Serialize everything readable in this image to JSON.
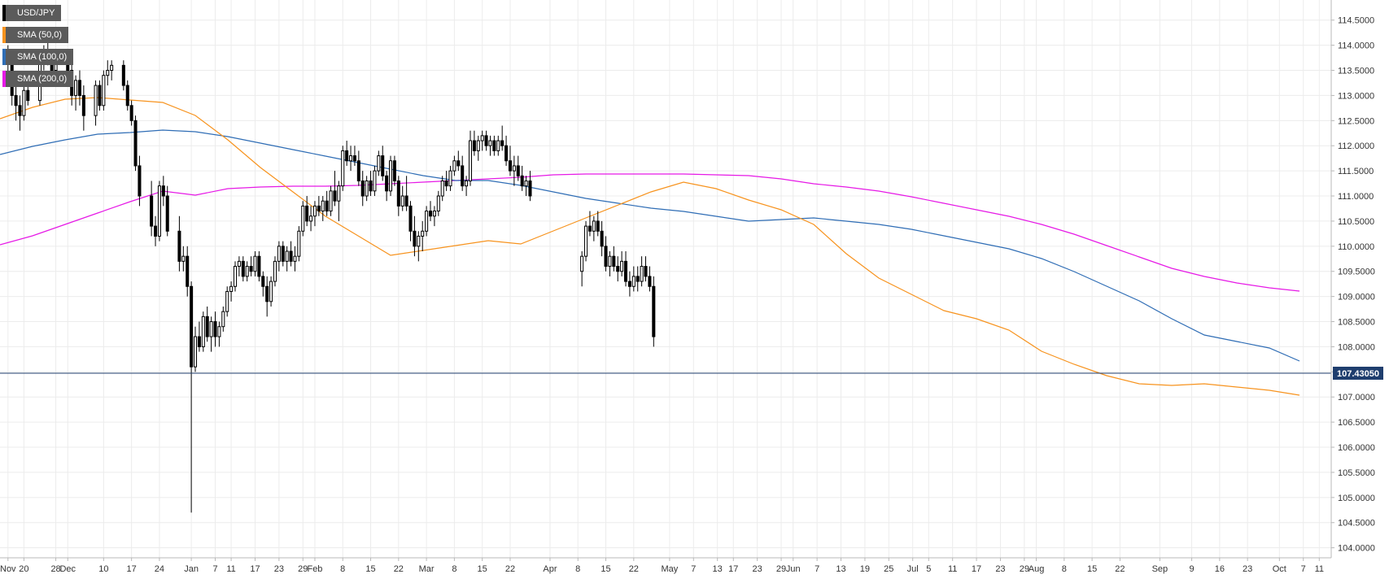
{
  "legend": {
    "items": [
      {
        "label": "USD/JPY",
        "color": "#000000"
      },
      {
        "label": "SMA (50,0)",
        "color": "#f7931e"
      },
      {
        "label": "SMA (100,0)",
        "color": "#2f6db5"
      },
      {
        "label": "SMA (200,0)",
        "color": "#e619e6"
      }
    ]
  },
  "last_price_label": "107.43050",
  "chart_data": {
    "type": "candlestick",
    "title": "",
    "xlabel": "",
    "ylabel": "",
    "ylim": [
      103.8,
      114.9
    ],
    "grid": true,
    "legend_position": "top-left",
    "y_ticks": [
      "114.5000",
      "114.0000",
      "113.5000",
      "113.0000",
      "112.5000",
      "112.0000",
      "111.5000",
      "111.0000",
      "110.5000",
      "110.0000",
      "109.5000",
      "109.0000",
      "108.5000",
      "108.0000",
      "107.5000",
      "107.0000",
      "106.5000",
      "106.0000",
      "105.5000",
      "105.0000",
      "104.5000",
      "104.0000"
    ],
    "x_ticks": [
      {
        "label": "Nov",
        "day": 0
      },
      {
        "label": "20",
        "day": 4
      },
      {
        "label": "28",
        "day": 12
      },
      {
        "label": "Dec",
        "day": 15
      },
      {
        "label": "10",
        "day": 24
      },
      {
        "label": "17",
        "day": 31
      },
      {
        "label": "24",
        "day": 38
      },
      {
        "label": "Jan",
        "day": 46
      },
      {
        "label": "7",
        "day": 52
      },
      {
        "label": "11",
        "day": 56
      },
      {
        "label": "17",
        "day": 62
      },
      {
        "label": "23",
        "day": 68
      },
      {
        "label": "29",
        "day": 74
      },
      {
        "label": "Feb",
        "day": 77
      },
      {
        "label": "8",
        "day": 84
      },
      {
        "label": "15",
        "day": 91
      },
      {
        "label": "22",
        "day": 98
      },
      {
        "label": "Mar",
        "day": 105
      },
      {
        "label": "8",
        "day": 112
      },
      {
        "label": "15",
        "day": 119
      },
      {
        "label": "22",
        "day": 126
      },
      {
        "label": "Apr",
        "day": 136
      },
      {
        "label": "8",
        "day": 143
      },
      {
        "label": "15",
        "day": 150
      },
      {
        "label": "22",
        "day": 157
      },
      {
        "label": "May",
        "day": 166
      },
      {
        "label": "7",
        "day": 172
      },
      {
        "label": "13",
        "day": 178
      },
      {
        "label": "17",
        "day": 182
      },
      {
        "label": "23",
        "day": 188
      },
      {
        "label": "29",
        "day": 194
      },
      {
        "label": "Jun",
        "day": 197
      },
      {
        "label": "7",
        "day": 203
      },
      {
        "label": "13",
        "day": 209
      },
      {
        "label": "19",
        "day": 215
      },
      {
        "label": "25",
        "day": 221
      },
      {
        "label": "Jul",
        "day": 227
      },
      {
        "label": "5",
        "day": 231
      },
      {
        "label": "11",
        "day": 237
      },
      {
        "label": "17",
        "day": 243
      },
      {
        "label": "23",
        "day": 249
      },
      {
        "label": "29",
        "day": 255
      },
      {
        "label": "Aug",
        "day": 258
      },
      {
        "label": "8",
        "day": 265
      },
      {
        "label": "15",
        "day": 272
      },
      {
        "label": "22",
        "day": 279
      },
      {
        "label": "Sep",
        "day": 289
      },
      {
        "label": "9",
        "day": 297
      },
      {
        "label": "16",
        "day": 304
      },
      {
        "label": "23",
        "day": 311
      },
      {
        "label": "Oct",
        "day": 319
      },
      {
        "label": "7",
        "day": 325
      },
      {
        "label": "11",
        "day": 329
      }
    ],
    "x_range_days": [
      -2,
      332
    ],
    "last_price": 107.43,
    "candles": [
      {
        "d": 0,
        "o": 113.85,
        "h": 114.0,
        "l": 113.3,
        "c": 113.7
      },
      {
        "d": 1,
        "o": 113.7,
        "h": 113.9,
        "l": 112.8,
        "c": 113.0
      },
      {
        "d": 2,
        "o": 113.0,
        "h": 113.3,
        "l": 112.5,
        "c": 112.8
      },
      {
        "d": 3,
        "o": 112.8,
        "h": 113.0,
        "l": 112.3,
        "c": 112.6
      },
      {
        "d": 4,
        "o": 112.6,
        "h": 113.2,
        "l": 112.5,
        "c": 113.1
      },
      {
        "d": 5,
        "o": 113.1,
        "h": 113.3,
        "l": 112.8,
        "c": 112.9
      },
      {
        "d": 8,
        "o": 112.9,
        "h": 113.8,
        "l": 112.8,
        "c": 113.7
      },
      {
        "d": 9,
        "o": 113.7,
        "h": 114.0,
        "l": 113.5,
        "c": 113.9
      },
      {
        "d": 10,
        "o": 113.9,
        "h": 114.1,
        "l": 113.6,
        "c": 113.7
      },
      {
        "d": 11,
        "o": 113.7,
        "h": 113.9,
        "l": 113.4,
        "c": 113.5
      },
      {
        "d": 12,
        "o": 113.5,
        "h": 113.9,
        "l": 113.3,
        "c": 113.8
      },
      {
        "d": 15,
        "o": 113.8,
        "h": 113.9,
        "l": 113.4,
        "c": 113.5
      },
      {
        "d": 16,
        "o": 113.5,
        "h": 113.7,
        "l": 112.8,
        "c": 113.0
      },
      {
        "d": 17,
        "o": 113.0,
        "h": 113.4,
        "l": 112.7,
        "c": 113.3
      },
      {
        "d": 18,
        "o": 113.3,
        "h": 113.5,
        "l": 112.8,
        "c": 113.0
      },
      {
        "d": 19,
        "o": 113.0,
        "h": 113.2,
        "l": 112.3,
        "c": 112.6
      },
      {
        "d": 22,
        "o": 112.6,
        "h": 113.3,
        "l": 112.4,
        "c": 113.2
      },
      {
        "d": 23,
        "o": 113.2,
        "h": 113.3,
        "l": 112.7,
        "c": 112.8
      },
      {
        "d": 24,
        "o": 112.8,
        "h": 113.5,
        "l": 112.7,
        "c": 113.4
      },
      {
        "d": 25,
        "o": 113.4,
        "h": 113.7,
        "l": 113.2,
        "c": 113.5
      },
      {
        "d": 26,
        "o": 113.5,
        "h": 113.7,
        "l": 113.3,
        "c": 113.6
      },
      {
        "d": 29,
        "o": 113.6,
        "h": 113.7,
        "l": 113.1,
        "c": 113.2
      },
      {
        "d": 30,
        "o": 113.2,
        "h": 113.3,
        "l": 112.7,
        "c": 112.8
      },
      {
        "d": 31,
        "o": 112.8,
        "h": 112.9,
        "l": 112.4,
        "c": 112.5
      },
      {
        "d": 32,
        "o": 112.5,
        "h": 112.6,
        "l": 111.5,
        "c": 111.6
      },
      {
        "d": 33,
        "o": 111.6,
        "h": 111.8,
        "l": 110.8,
        "c": 111.0
      },
      {
        "d": 36,
        "o": 111.0,
        "h": 111.3,
        "l": 110.2,
        "c": 110.4
      },
      {
        "d": 37,
        "o": 110.4,
        "h": 110.6,
        "l": 110.0,
        "c": 110.2
      },
      {
        "d": 38,
        "o": 110.2,
        "h": 111.3,
        "l": 110.1,
        "c": 111.2
      },
      {
        "d": 39,
        "o": 111.2,
        "h": 111.4,
        "l": 110.8,
        "c": 111.0
      },
      {
        "d": 40,
        "o": 111.0,
        "h": 111.2,
        "l": 110.2,
        "c": 110.3
      },
      {
        "d": 43,
        "o": 110.3,
        "h": 110.6,
        "l": 109.5,
        "c": 109.7
      },
      {
        "d": 44,
        "o": 109.7,
        "h": 110.0,
        "l": 109.5,
        "c": 109.8
      },
      {
        "d": 45,
        "o": 109.8,
        "h": 110.0,
        "l": 109.0,
        "c": 109.2
      },
      {
        "d": 46,
        "o": 109.2,
        "h": 109.3,
        "l": 104.7,
        "c": 107.6
      },
      {
        "d": 47,
        "o": 107.6,
        "h": 108.4,
        "l": 107.5,
        "c": 108.2
      },
      {
        "d": 48,
        "o": 108.2,
        "h": 108.5,
        "l": 107.9,
        "c": 108.0
      },
      {
        "d": 49,
        "o": 108.0,
        "h": 108.7,
        "l": 107.9,
        "c": 108.6
      },
      {
        "d": 50,
        "o": 108.6,
        "h": 108.8,
        "l": 108.1,
        "c": 108.2
      },
      {
        "d": 51,
        "o": 108.2,
        "h": 108.6,
        "l": 107.9,
        "c": 108.5
      },
      {
        "d": 52,
        "o": 108.5,
        "h": 108.7,
        "l": 108.0,
        "c": 108.2
      },
      {
        "d": 53,
        "o": 108.2,
        "h": 108.5,
        "l": 108.0,
        "c": 108.4
      },
      {
        "d": 54,
        "o": 108.4,
        "h": 108.8,
        "l": 108.3,
        "c": 108.7
      },
      {
        "d": 55,
        "o": 108.7,
        "h": 109.2,
        "l": 108.6,
        "c": 109.1
      },
      {
        "d": 56,
        "o": 109.1,
        "h": 109.3,
        "l": 108.9,
        "c": 109.2
      },
      {
        "d": 57,
        "o": 109.2,
        "h": 109.7,
        "l": 109.1,
        "c": 109.6
      },
      {
        "d": 58,
        "o": 109.6,
        "h": 109.8,
        "l": 109.4,
        "c": 109.7
      },
      {
        "d": 59,
        "o": 109.7,
        "h": 109.8,
        "l": 109.3,
        "c": 109.4
      },
      {
        "d": 60,
        "o": 109.4,
        "h": 109.7,
        "l": 109.3,
        "c": 109.6
      },
      {
        "d": 61,
        "o": 109.6,
        "h": 109.8,
        "l": 109.4,
        "c": 109.5
      },
      {
        "d": 62,
        "o": 109.5,
        "h": 109.9,
        "l": 109.4,
        "c": 109.8
      },
      {
        "d": 63,
        "o": 109.8,
        "h": 109.9,
        "l": 109.3,
        "c": 109.4
      },
      {
        "d": 64,
        "o": 109.4,
        "h": 109.5,
        "l": 109.0,
        "c": 109.2
      },
      {
        "d": 65,
        "o": 109.2,
        "h": 109.4,
        "l": 108.6,
        "c": 108.9
      },
      {
        "d": 66,
        "o": 108.9,
        "h": 109.4,
        "l": 108.8,
        "c": 109.3
      },
      {
        "d": 67,
        "o": 109.3,
        "h": 109.8,
        "l": 109.2,
        "c": 109.7
      },
      {
        "d": 68,
        "o": 109.7,
        "h": 110.1,
        "l": 109.5,
        "c": 110.0
      },
      {
        "d": 69,
        "o": 110.0,
        "h": 110.1,
        "l": 109.6,
        "c": 109.7
      },
      {
        "d": 70,
        "o": 109.7,
        "h": 110.0,
        "l": 109.5,
        "c": 109.9
      },
      {
        "d": 71,
        "o": 109.9,
        "h": 110.1,
        "l": 109.6,
        "c": 109.7
      },
      {
        "d": 72,
        "o": 109.7,
        "h": 110.0,
        "l": 109.5,
        "c": 109.8
      },
      {
        "d": 73,
        "o": 109.8,
        "h": 110.4,
        "l": 109.7,
        "c": 110.3
      },
      {
        "d": 74,
        "o": 110.3,
        "h": 110.9,
        "l": 110.2,
        "c": 110.8
      },
      {
        "d": 75,
        "o": 110.8,
        "h": 111.0,
        "l": 110.4,
        "c": 110.5
      },
      {
        "d": 76,
        "o": 110.5,
        "h": 110.8,
        "l": 110.3,
        "c": 110.6
      },
      {
        "d": 77,
        "o": 110.6,
        "h": 110.9,
        "l": 110.4,
        "c": 110.8
      },
      {
        "d": 78,
        "o": 110.8,
        "h": 111.0,
        "l": 110.6,
        "c": 110.7
      },
      {
        "d": 79,
        "o": 110.7,
        "h": 111.0,
        "l": 110.5,
        "c": 110.9
      },
      {
        "d": 80,
        "o": 110.9,
        "h": 111.1,
        "l": 110.6,
        "c": 110.7
      },
      {
        "d": 81,
        "o": 110.7,
        "h": 111.2,
        "l": 110.6,
        "c": 111.1
      },
      {
        "d": 82,
        "o": 111.1,
        "h": 111.5,
        "l": 110.8,
        "c": 110.9
      },
      {
        "d": 83,
        "o": 110.9,
        "h": 111.3,
        "l": 110.5,
        "c": 111.2
      },
      {
        "d": 84,
        "o": 111.2,
        "h": 112.0,
        "l": 111.1,
        "c": 111.9
      },
      {
        "d": 85,
        "o": 111.9,
        "h": 112.1,
        "l": 111.6,
        "c": 111.7
      },
      {
        "d": 86,
        "o": 111.7,
        "h": 112.0,
        "l": 111.5,
        "c": 111.8
      },
      {
        "d": 87,
        "o": 111.8,
        "h": 112.0,
        "l": 111.6,
        "c": 111.7
      },
      {
        "d": 88,
        "o": 111.7,
        "h": 111.9,
        "l": 111.2,
        "c": 111.3
      },
      {
        "d": 89,
        "o": 111.3,
        "h": 111.5,
        "l": 110.8,
        "c": 111.0
      },
      {
        "d": 90,
        "o": 111.0,
        "h": 111.4,
        "l": 110.9,
        "c": 111.3
      },
      {
        "d": 91,
        "o": 111.3,
        "h": 111.5,
        "l": 111.0,
        "c": 111.1
      },
      {
        "d": 92,
        "o": 111.1,
        "h": 111.6,
        "l": 111.0,
        "c": 111.5
      },
      {
        "d": 93,
        "o": 111.5,
        "h": 111.9,
        "l": 111.4,
        "c": 111.8
      },
      {
        "d": 94,
        "o": 111.8,
        "h": 112.0,
        "l": 111.3,
        "c": 111.4
      },
      {
        "d": 95,
        "o": 111.4,
        "h": 111.5,
        "l": 110.9,
        "c": 111.1
      },
      {
        "d": 96,
        "o": 111.1,
        "h": 111.8,
        "l": 111.0,
        "c": 111.7
      },
      {
        "d": 97,
        "o": 111.7,
        "h": 111.8,
        "l": 111.2,
        "c": 111.3
      },
      {
        "d": 98,
        "o": 111.3,
        "h": 111.4,
        "l": 110.6,
        "c": 110.8
      },
      {
        "d": 99,
        "o": 110.8,
        "h": 111.2,
        "l": 110.7,
        "c": 111.0
      },
      {
        "d": 100,
        "o": 111.0,
        "h": 111.4,
        "l": 110.7,
        "c": 110.8
      },
      {
        "d": 101,
        "o": 110.8,
        "h": 110.9,
        "l": 110.1,
        "c": 110.3
      },
      {
        "d": 102,
        "o": 110.3,
        "h": 110.6,
        "l": 109.8,
        "c": 110.0
      },
      {
        "d": 103,
        "o": 110.0,
        "h": 110.3,
        "l": 109.7,
        "c": 110.2
      },
      {
        "d": 104,
        "o": 110.2,
        "h": 110.5,
        "l": 109.9,
        "c": 110.3
      },
      {
        "d": 105,
        "o": 110.3,
        "h": 110.8,
        "l": 110.2,
        "c": 110.7
      },
      {
        "d": 106,
        "o": 110.7,
        "h": 110.9,
        "l": 110.5,
        "c": 110.6
      },
      {
        "d": 107,
        "o": 110.6,
        "h": 110.8,
        "l": 110.4,
        "c": 110.7
      },
      {
        "d": 108,
        "o": 110.7,
        "h": 111.1,
        "l": 110.6,
        "c": 111.0
      },
      {
        "d": 109,
        "o": 111.0,
        "h": 111.4,
        "l": 110.9,
        "c": 111.3
      },
      {
        "d": 110,
        "o": 111.3,
        "h": 111.5,
        "l": 111.1,
        "c": 111.2
      },
      {
        "d": 111,
        "o": 111.2,
        "h": 111.6,
        "l": 111.1,
        "c": 111.5
      },
      {
        "d": 112,
        "o": 111.5,
        "h": 111.8,
        "l": 111.4,
        "c": 111.7
      },
      {
        "d": 113,
        "o": 111.7,
        "h": 111.9,
        "l": 111.5,
        "c": 111.6
      },
      {
        "d": 114,
        "o": 111.6,
        "h": 111.8,
        "l": 111.1,
        "c": 111.2
      },
      {
        "d": 115,
        "o": 111.2,
        "h": 111.4,
        "l": 111.0,
        "c": 111.3
      },
      {
        "d": 116,
        "o": 111.3,
        "h": 112.3,
        "l": 111.2,
        "c": 112.1
      },
      {
        "d": 117,
        "o": 112.1,
        "h": 112.3,
        "l": 111.8,
        "c": 111.9
      },
      {
        "d": 118,
        "o": 111.9,
        "h": 112.2,
        "l": 111.7,
        "c": 112.1
      },
      {
        "d": 119,
        "o": 112.1,
        "h": 112.3,
        "l": 111.9,
        "c": 112.2
      },
      {
        "d": 120,
        "o": 112.2,
        "h": 112.3,
        "l": 111.9,
        "c": 112.0
      },
      {
        "d": 121,
        "o": 112.0,
        "h": 112.2,
        "l": 111.8,
        "c": 112.1
      },
      {
        "d": 122,
        "o": 112.1,
        "h": 112.2,
        "l": 111.8,
        "c": 111.9
      },
      {
        "d": 123,
        "o": 111.9,
        "h": 112.2,
        "l": 111.8,
        "c": 112.1
      },
      {
        "d": 124,
        "o": 112.1,
        "h": 112.4,
        "l": 111.9,
        "c": 112.0
      },
      {
        "d": 125,
        "o": 112.0,
        "h": 112.2,
        "l": 111.6,
        "c": 111.7
      },
      {
        "d": 126,
        "o": 111.7,
        "h": 112.0,
        "l": 111.4,
        "c": 111.5
      },
      {
        "d": 127,
        "o": 111.5,
        "h": 111.8,
        "l": 111.2,
        "c": 111.6
      },
      {
        "d": 128,
        "o": 111.6,
        "h": 111.8,
        "l": 111.3,
        "c": 111.4
      },
      {
        "d": 129,
        "o": 111.4,
        "h": 111.6,
        "l": 111.1,
        "c": 111.2
      },
      {
        "d": 130,
        "o": 111.2,
        "h": 111.4,
        "l": 111.0,
        "c": 111.3
      },
      {
        "d": 131,
        "o": 111.3,
        "h": 111.5,
        "l": 110.9,
        "c": 111.0
      },
      {
        "d": 144,
        "o": 109.5,
        "h": 109.9,
        "l": 109.2,
        "c": 109.8
      },
      {
        "d": 145,
        "o": 109.8,
        "h": 110.5,
        "l": 109.7,
        "c": 110.4
      },
      {
        "d": 146,
        "o": 110.4,
        "h": 110.7,
        "l": 110.2,
        "c": 110.3
      },
      {
        "d": 147,
        "o": 110.3,
        "h": 110.6,
        "l": 110.1,
        "c": 110.5
      },
      {
        "d": 148,
        "o": 110.5,
        "h": 110.7,
        "l": 110.2,
        "c": 110.3
      },
      {
        "d": 149,
        "o": 110.3,
        "h": 110.5,
        "l": 109.8,
        "c": 110.0
      },
      {
        "d": 150,
        "o": 110.0,
        "h": 110.2,
        "l": 109.5,
        "c": 109.6
      },
      {
        "d": 151,
        "o": 109.6,
        "h": 109.9,
        "l": 109.4,
        "c": 109.8
      },
      {
        "d": 152,
        "o": 109.8,
        "h": 110.0,
        "l": 109.5,
        "c": 109.6
      },
      {
        "d": 153,
        "o": 109.6,
        "h": 109.8,
        "l": 109.3,
        "c": 109.5
      },
      {
        "d": 154,
        "o": 109.5,
        "h": 109.9,
        "l": 109.4,
        "c": 109.7
      },
      {
        "d": 155,
        "o": 109.7,
        "h": 109.9,
        "l": 109.2,
        "c": 109.3
      },
      {
        "d": 156,
        "o": 109.3,
        "h": 109.5,
        "l": 109.0,
        "c": 109.2
      },
      {
        "d": 157,
        "o": 109.2,
        "h": 109.6,
        "l": 109.1,
        "c": 109.4
      },
      {
        "d": 158,
        "o": 109.4,
        "h": 109.6,
        "l": 109.1,
        "c": 109.3
      },
      {
        "d": 159,
        "o": 109.3,
        "h": 109.8,
        "l": 109.2,
        "c": 109.6
      },
      {
        "d": 160,
        "o": 109.6,
        "h": 109.8,
        "l": 109.3,
        "c": 109.4
      },
      {
        "d": 161,
        "o": 109.4,
        "h": 109.6,
        "l": 109.1,
        "c": 109.2
      },
      {
        "d": 162,
        "o": 109.2,
        "h": 109.4,
        "l": 108.0,
        "c": 108.2
      }
    ]
  }
}
